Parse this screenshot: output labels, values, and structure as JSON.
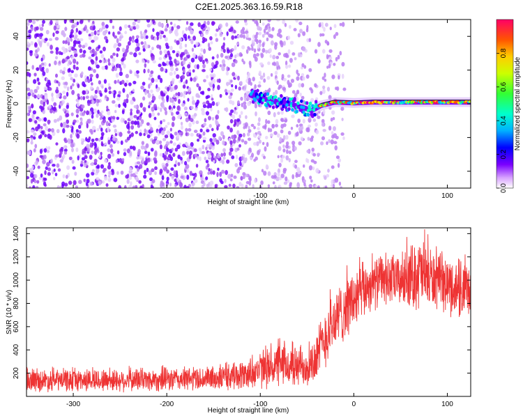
{
  "title": "C2E1.2025.363.16.59.R18",
  "chart_data": [
    {
      "type": "heatmap",
      "panel": "spectrogram",
      "xlabel": "Height of straight line (km)",
      "ylabel": "Frequency (Hz)",
      "xlim": [
        -350,
        125
      ],
      "ylim": [
        -50,
        50
      ],
      "xticks": [
        -300,
        -200,
        -100,
        0,
        100
      ],
      "xtick_labels": [
        "-300",
        "-200",
        "-100",
        "0",
        "100"
      ],
      "yticks": [
        -40,
        -20,
        0,
        20,
        40
      ],
      "ytick_labels": [
        "-40",
        "-20",
        "0",
        "20",
        "40"
      ],
      "noise_region_x": [
        -350,
        -50
      ],
      "tone_center_hz": [
        {
          "x": -110,
          "y": 5
        },
        {
          "x": -90,
          "y": 2
        },
        {
          "x": -70,
          "y": 0
        },
        {
          "x": -55,
          "y": -2
        },
        {
          "x": -45,
          "y": -4
        },
        {
          "x": -35,
          "y": -1
        },
        {
          "x": -20,
          "y": 1
        },
        {
          "x": 0,
          "y": 0.5
        },
        {
          "x": 20,
          "y": 1
        },
        {
          "x": 50,
          "y": 1
        },
        {
          "x": 80,
          "y": 1
        },
        {
          "x": 125,
          "y": 1
        }
      ],
      "colorbar": {
        "label": "Normalized spectral amplitude",
        "range": [
          0,
          1
        ],
        "ticks": [
          0.0,
          0.2,
          0.4,
          0.6,
          0.8
        ],
        "tick_labels": [
          "0.0",
          "0.2",
          "0.4",
          "0.6",
          "0.8"
        ]
      }
    },
    {
      "type": "line",
      "panel": "snr",
      "xlabel": "Height of straight line (km)",
      "ylabel": "SNR (10 * v/v)",
      "xlim": [
        -350,
        125
      ],
      "ylim": [
        0,
        1450
      ],
      "xticks": [
        -300,
        -200,
        -100,
        0,
        100
      ],
      "xtick_labels": [
        "-300",
        "-200",
        "-100",
        "0",
        "100"
      ],
      "yticks": [
        200,
        400,
        600,
        800,
        1000,
        1200,
        1400
      ],
      "ytick_labels": [
        "200",
        "400",
        "600",
        "800",
        "1000",
        "1200",
        "1400"
      ],
      "series": [
        {
          "name": "SNR",
          "color": "#ee3333",
          "envelope": [
            {
              "x": -350,
              "low": 30,
              "high": 240
            },
            {
              "x": -300,
              "low": 30,
              "high": 250
            },
            {
              "x": -250,
              "low": 30,
              "high": 250
            },
            {
              "x": -200,
              "low": 30,
              "high": 260
            },
            {
              "x": -150,
              "low": 40,
              "high": 270
            },
            {
              "x": -120,
              "low": 40,
              "high": 320
            },
            {
              "x": -100,
              "low": 50,
              "high": 400
            },
            {
              "x": -80,
              "low": 60,
              "high": 480
            },
            {
              "x": -60,
              "low": 50,
              "high": 450
            },
            {
              "x": -45,
              "low": 60,
              "high": 500
            },
            {
              "x": -35,
              "low": 150,
              "high": 700
            },
            {
              "x": -25,
              "low": 300,
              "high": 900
            },
            {
              "x": -15,
              "low": 400,
              "high": 1000
            },
            {
              "x": -5,
              "low": 500,
              "high": 1100
            },
            {
              "x": 5,
              "low": 550,
              "high": 1150
            },
            {
              "x": 15,
              "low": 700,
              "high": 1200
            },
            {
              "x": 30,
              "low": 750,
              "high": 1250
            },
            {
              "x": 50,
              "low": 750,
              "high": 1250
            },
            {
              "x": 70,
              "low": 700,
              "high": 1420
            },
            {
              "x": 90,
              "low": 720,
              "high": 1250
            },
            {
              "x": 110,
              "low": 650,
              "high": 1200
            },
            {
              "x": 125,
              "low": 600,
              "high": 1150
            }
          ]
        }
      ]
    }
  ]
}
